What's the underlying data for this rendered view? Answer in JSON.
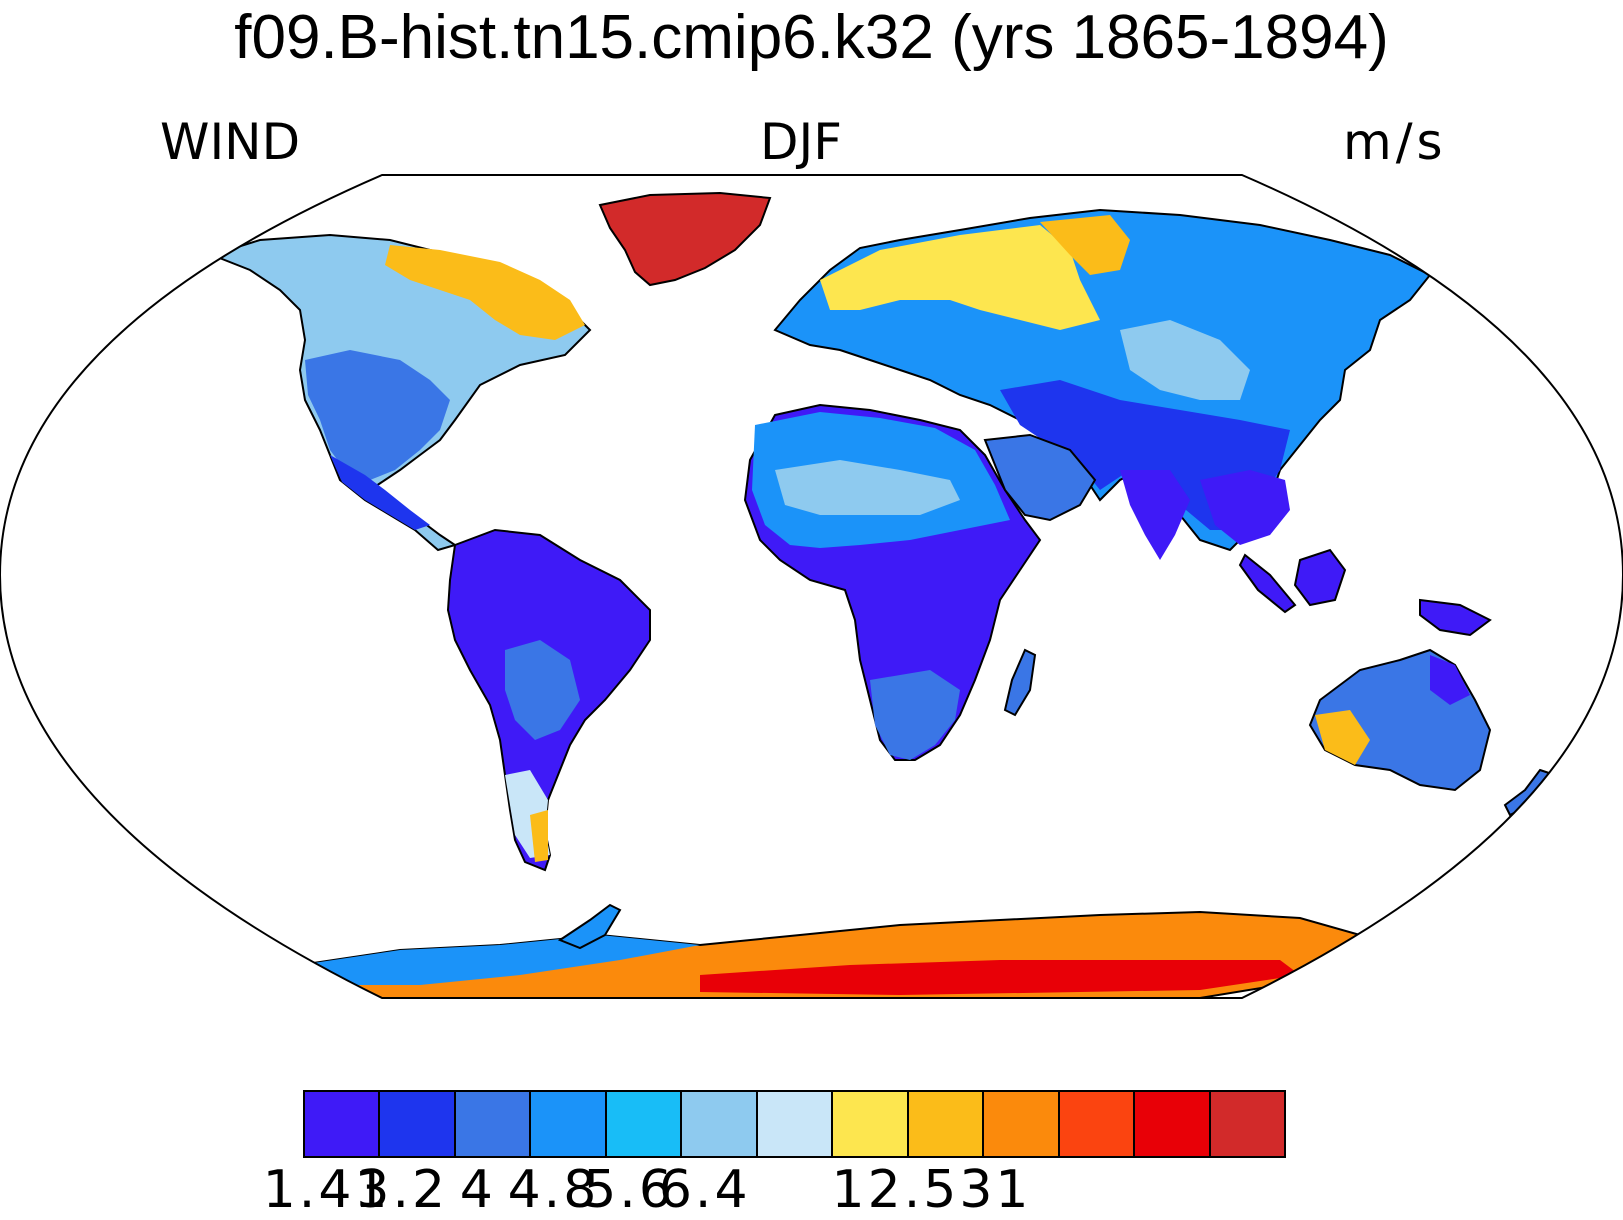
{
  "title": "f09.B-hist.tn15.cmip6.k32 (yrs 1865-1894)",
  "left_label": "WIND",
  "center_label": "DJF",
  "right_label": "m/s",
  "colorbar": {
    "colors": [
      "#3f1af7",
      "#1e35ee",
      "#3a76e6",
      "#1b93f9",
      "#18bdf7",
      "#8ecaef",
      "#c9e6f8",
      "#fde64f",
      "#fbbc19",
      "#fb8a0c",
      "#fb4410",
      "#e80007",
      "#d22a2a"
    ],
    "tick_labels": [
      "1.41",
      "3.2",
      "4",
      "4.8",
      "5.6",
      "6.4",
      "12.531"
    ]
  },
  "map": {
    "projection": "Robinson",
    "variable": "WIND",
    "season": "DJF",
    "units": "m/s"
  }
}
